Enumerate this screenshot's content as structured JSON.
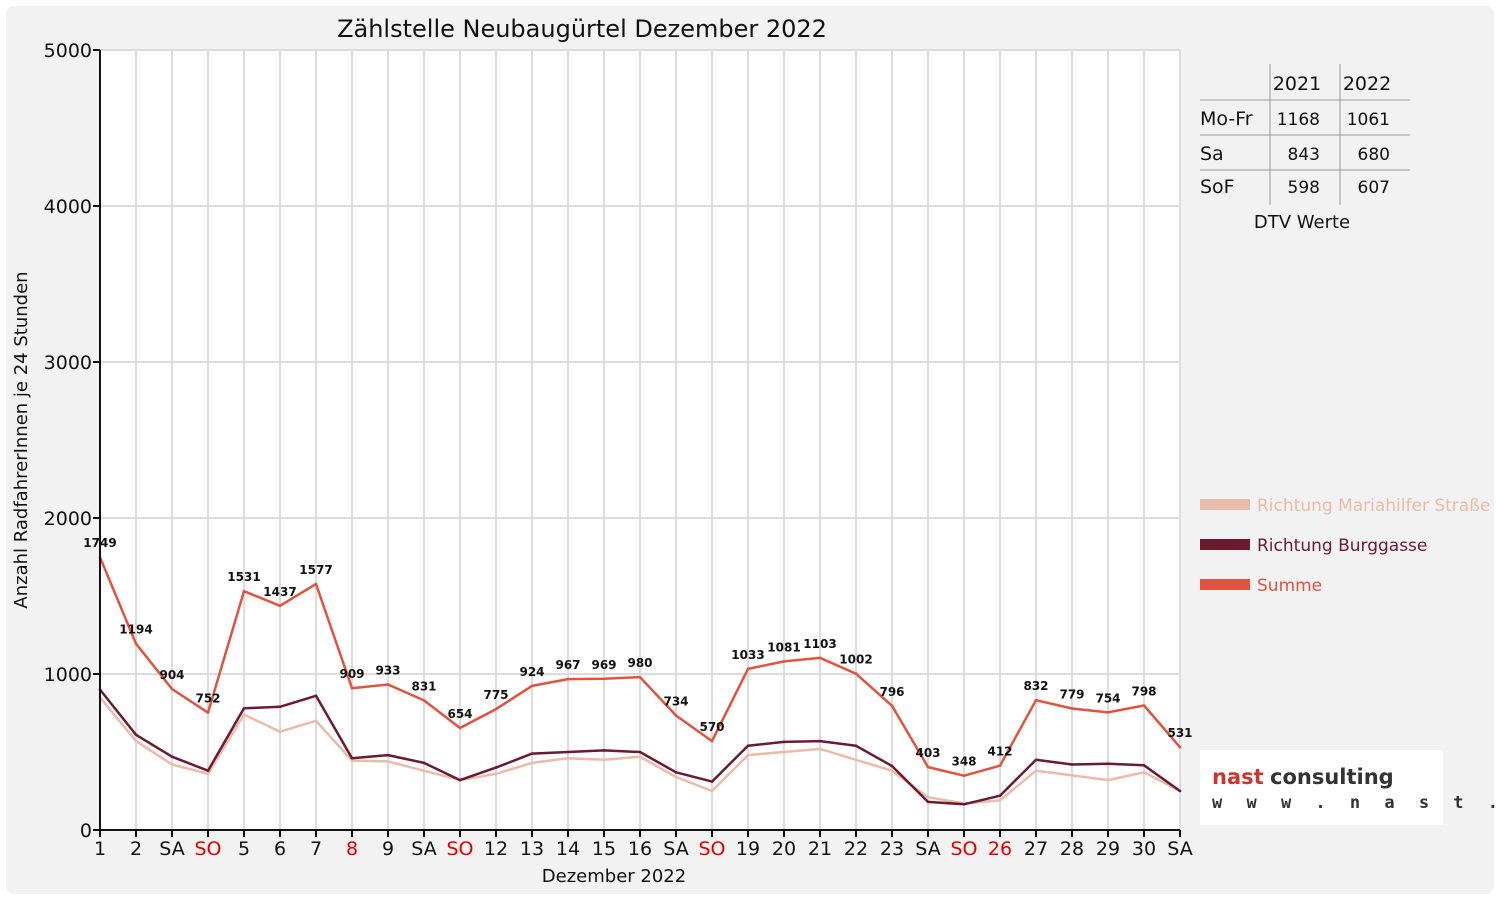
{
  "chart_data": {
    "type": "line",
    "title": "Zählstelle Neubaugürtel Dezember 2022",
    "xlabel": "Dezember 2022",
    "ylabel": "Anzahl RadfahrerInnen je 24 Stunden",
    "ylim": [
      0,
      5000
    ],
    "yticks": [
      "0",
      "1000",
      "2000",
      "3000",
      "4000",
      "5000"
    ],
    "grid": true,
    "categories": [
      "1",
      "2",
      "SA",
      "SO",
      "5",
      "6",
      "7",
      "8",
      "9",
      "SA",
      "SO",
      "12",
      "13",
      "14",
      "15",
      "16",
      "SA",
      "SO",
      "19",
      "20",
      "21",
      "22",
      "23",
      "SA",
      "SO",
      "26",
      "27",
      "28",
      "29",
      "30",
      "SA"
    ],
    "red_categories": [
      "SO",
      "8",
      "26"
    ],
    "series": [
      {
        "name": "Richtung Mariahilfer Straße",
        "color": "#e8bca8",
        "values": [
          850,
          570,
          420,
          360,
          740,
          630,
          700,
          445,
          440,
          380,
          320,
          360,
          430,
          460,
          450,
          470,
          340,
          250,
          480,
          500,
          520,
          450,
          380,
          210,
          170,
          190,
          380,
          350,
          320,
          370,
          250
        ]
      },
      {
        "name": "Richtung Burggasse",
        "color": "#6b1a30",
        "values": [
          900,
          610,
          470,
          380,
          780,
          790,
          860,
          460,
          480,
          430,
          320,
          400,
          490,
          500,
          510,
          500,
          370,
          310,
          540,
          565,
          570,
          540,
          410,
          180,
          165,
          220,
          450,
          420,
          425,
          415,
          250
        ]
      },
      {
        "name": "Summe",
        "color": "#e0533e",
        "values": [
          1749,
          1194,
          904,
          752,
          1531,
          1437,
          1577,
          909,
          933,
          831,
          654,
          775,
          924,
          967,
          969,
          980,
          734,
          570,
          1033,
          1081,
          1103,
          1002,
          796,
          403,
          348,
          412,
          832,
          779,
          754,
          798,
          531
        ]
      }
    ],
    "data_labels": [
      "1749",
      "1194",
      "904",
      "752",
      "1531",
      "1437",
      "1577",
      "909",
      "933",
      "831",
      "654",
      "775",
      "924",
      "967",
      "969",
      "980",
      "734",
      "570",
      "1033",
      "1081",
      "1103",
      "1002",
      "796",
      "403",
      "348",
      "412",
      "832",
      "779",
      "754",
      "798",
      "531"
    ],
    "legend_placement": "right"
  },
  "dtv_table": {
    "years": [
      "2021",
      "2022"
    ],
    "rows": [
      {
        "label": "Mo-Fr",
        "v2021": "1168",
        "v2022": "1061"
      },
      {
        "label": "Sa",
        "v2021": "843",
        "v2022": "680"
      },
      {
        "label": "SoF",
        "v2021": "598",
        "v2022": "607"
      }
    ],
    "caption": "DTV Werte"
  },
  "logo": {
    "word1": "nast",
    "word2": "consulting",
    "url": "w w w . n a s t . a t"
  },
  "colors": {
    "red_label": "#e00000",
    "grid": "#dcdcdc"
  }
}
